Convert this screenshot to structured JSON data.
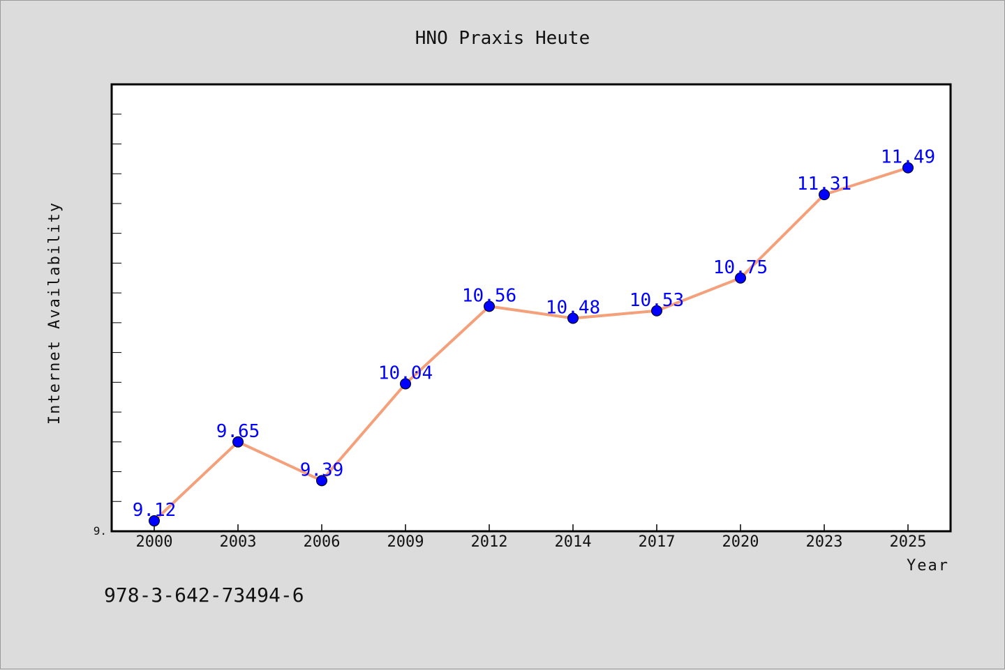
{
  "chart_data": {
    "type": "line",
    "title": "HNO Praxis Heute",
    "xlabel": "Year",
    "ylabel": "Internet Availability",
    "categories": [
      "2000",
      "2003",
      "2006",
      "2009",
      "2012",
      "2014",
      "2017",
      "2020",
      "2023",
      "2025"
    ],
    "series": [
      {
        "values": [
          9.12,
          9.65,
          9.39,
          10.04,
          10.56,
          10.48,
          10.53,
          10.75,
          11.31,
          11.49
        ],
        "labels": [
          "9.12",
          "9.65",
          "9.39",
          "10.04",
          "10.56",
          "10.48",
          "10.53",
          "10.75",
          "11.31",
          "11.49"
        ],
        "line_color": "#f4a07a",
        "marker_color": "#0000ff",
        "label_color": "#0000ff"
      }
    ],
    "ylim": [
      9.05,
      12.05
    ],
    "ytick_label": "9.",
    "minor_ytick_step": 0.2,
    "grid": false,
    "legend": "none"
  },
  "footnote": "978-3-642-73494-6"
}
